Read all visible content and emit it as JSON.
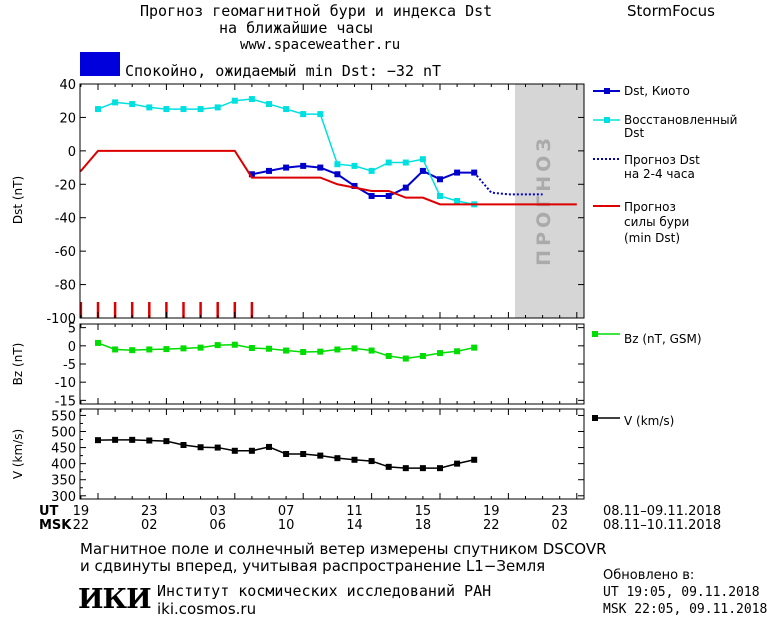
{
  "header": {
    "title_line1": "Прогноз геомагнитной бури и индекса Dst",
    "title_line2": "на ближайшие часы",
    "website": "www.spaceweather.ru",
    "brand": "StormFocus",
    "status_text": "Спокойно, ожидаемый min Dst: −32 nT"
  },
  "colors": {
    "dst_kyoto": "#0000cc",
    "dst_restored": "#00e0e0",
    "forecast": "#0000cc",
    "storm_forecast": "#dd0000",
    "bz": "#00dd00",
    "speed": "#000000",
    "forecast_zone": "#d6d6d6",
    "status_box": "#0000dd"
  },
  "chart_data": [
    {
      "type": "line",
      "panel": "dst",
      "ylabel": "Dst (nT)",
      "ylim": [
        -100,
        40
      ],
      "y_ticks": [
        "40",
        "20",
        "0",
        "-20",
        "-40",
        "-60",
        "-80",
        "-100"
      ],
      "forecast_zone_label": "ПРОГНОЗ",
      "series": [
        {
          "name": "Dst, Киото",
          "marker": "square",
          "x": [
            9,
            10,
            11,
            12,
            13,
            14,
            15,
            16,
            17,
            18,
            19,
            20,
            21,
            22
          ],
          "y": [
            -14,
            -12,
            -10,
            -9,
            -10,
            -14,
            -21,
            -27,
            -27,
            -22,
            -12,
            -17,
            -13,
            -13
          ]
        },
        {
          "name": "Восстановленный Dst",
          "marker": "square",
          "x": [
            0,
            1,
            2,
            3,
            4,
            5,
            6,
            7,
            8,
            9,
            10,
            11,
            12,
            13,
            14,
            15,
            16,
            17,
            18,
            19,
            20,
            21,
            22
          ],
          "y": [
            25,
            29,
            28,
            26,
            25,
            25,
            25,
            26,
            30,
            31,
            28,
            25,
            22,
            22,
            -8,
            -9,
            -12,
            -7,
            -7,
            -5,
            -27,
            -30,
            -32
          ]
        },
        {
          "name": "Прогноз Dst на 2-4 часа",
          "style": "dotted",
          "x": [
            22,
            23,
            24,
            25,
            26
          ],
          "y": [
            -13,
            -25,
            -26,
            -26,
            -26
          ]
        },
        {
          "name": "Прогноз силы бури (min Dst)",
          "style": "solid",
          "x": [
            -2,
            -1,
            0,
            1,
            2,
            3,
            4,
            5,
            6,
            7,
            8,
            9,
            10,
            11,
            12,
            13,
            14,
            15,
            16,
            17,
            18,
            19,
            20,
            21,
            22,
            23,
            24,
            25,
            26,
            27,
            28
          ],
          "y": [
            -12,
            -12,
            0,
            0,
            0,
            0,
            0,
            0,
            0,
            0,
            0,
            -16,
            -16,
            -16,
            -16,
            -16,
            -20,
            -22,
            -24,
            -24,
            -28,
            -28,
            -32,
            -32,
            -32,
            -32,
            -32,
            -32,
            -32,
            -32,
            -32
          ]
        }
      ],
      "quiet_marks_x": [
        -1,
        0,
        1,
        2,
        3,
        4,
        5,
        6,
        7,
        8,
        9
      ]
    },
    {
      "type": "line",
      "panel": "bz",
      "ylabel": "Bz (nT)",
      "ylim": [
        -16,
        6
      ],
      "y_ticks": [
        "5",
        "0",
        "-5",
        "-10",
        "-15"
      ],
      "series": [
        {
          "name": "Bz (nT, GSM)",
          "marker": "square",
          "x": [
            0,
            1,
            2,
            3,
            4,
            5,
            6,
            7,
            8,
            9,
            10,
            11,
            12,
            13,
            14,
            15,
            16,
            17,
            18,
            19,
            20,
            21,
            22
          ],
          "y": [
            0.8,
            -1,
            -1.2,
            -1,
            -0.9,
            -0.7,
            -0.5,
            0.2,
            0.3,
            -0.6,
            -0.8,
            -1.3,
            -1.7,
            -1.6,
            -1,
            -0.7,
            -1.3,
            -2.8,
            -3.5,
            -2.8,
            -2,
            -1.5,
            -0.5
          ]
        }
      ]
    },
    {
      "type": "line",
      "panel": "speed",
      "ylabel": "V (km/s)",
      "ylim": [
        290,
        570
      ],
      "y_ticks": [
        "550",
        "500",
        "450",
        "400",
        "350",
        "300"
      ],
      "y_ticks_minor": [
        "525",
        "475",
        "425",
        "375",
        "325"
      ],
      "series": [
        {
          "name": "V (km/s)",
          "marker": "square",
          "x": [
            0,
            1,
            2,
            3,
            4,
            5,
            6,
            7,
            8,
            9,
            10,
            11,
            12,
            13,
            14,
            15,
            16,
            17,
            18,
            19,
            20,
            21,
            22
          ],
          "y": [
            473,
            474,
            474,
            472,
            470,
            458,
            451,
            450,
            440,
            440,
            452,
            430,
            430,
            425,
            417,
            412,
            408,
            390,
            386,
            386,
            386,
            400,
            412
          ]
        }
      ]
    }
  ],
  "time_axis": {
    "ut_label": "UT",
    "msk_label": "MSK",
    "ut_ticks": [
      "19",
      "23",
      "03",
      "07",
      "11",
      "15",
      "19",
      "23"
    ],
    "msk_ticks": [
      "22",
      "02",
      "06",
      "10",
      "14",
      "18",
      "22",
      "02"
    ],
    "ut_range": "08.11–09.11.2018",
    "msk_range": "08.11–10.11.2018"
  },
  "legend": {
    "dst_kyoto": "Dst, Киото",
    "restored_1": "Восстановленный",
    "restored_2": "Dst",
    "forecast_1": "Прогноз Dst",
    "forecast_2": "на 2-4 часа",
    "storm_1": "Прогноз",
    "storm_2": "силы бури",
    "storm_3": "(min Dst)",
    "bz": "Bz (nT, GSM)",
    "speed": "V (km/s)"
  },
  "footer": {
    "note_line1": "Магнитное поле и солнечный ветер измерены спутником DSCOVR",
    "note_line2": "и сдвинуты вперед, учитывая распространение L1−Земля",
    "logo_text": "ИКИ",
    "institute": "Институт космических исследований РАН",
    "institute_site": "iki.cosmos.ru",
    "updated_label": "Обновлено в:",
    "updated_ut": "UT   19:05, 09.11.2018",
    "updated_msk": "MSK 22:05, 09.11.2018"
  }
}
